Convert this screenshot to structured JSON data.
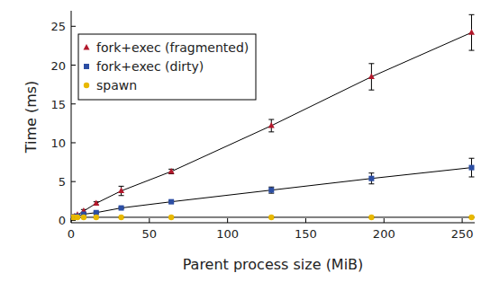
{
  "chart_data": {
    "type": "line",
    "x_label": "Parent process size (MiB)",
    "y_label": "Time (ms)",
    "x": [
      1,
      2,
      4,
      8,
      16,
      32,
      64,
      128,
      192,
      256
    ],
    "series": [
      {
        "name": "fork+exec (fragmented)",
        "color": "#b2182b",
        "marker": "triangle",
        "values": [
          0.4,
          0.5,
          0.7,
          1.2,
          2.2,
          3.8,
          6.3,
          12.2,
          18.5,
          24.2
        ],
        "errors": [
          0.05,
          0.05,
          0.1,
          0.2,
          0.2,
          0.6,
          0.3,
          0.8,
          1.7,
          2.3
        ]
      },
      {
        "name": "fork+exec (dirty)",
        "color": "#2c4ea3",
        "marker": "square",
        "values": [
          0.4,
          0.45,
          0.55,
          0.8,
          1.0,
          1.6,
          2.4,
          3.9,
          5.4,
          6.8
        ],
        "errors": [
          0.05,
          0.05,
          0.05,
          0.1,
          0.1,
          0.1,
          0.15,
          0.4,
          0.7,
          1.2
        ]
      },
      {
        "name": "spawn",
        "color": "#e8b800",
        "marker": "circle",
        "values": [
          0.4,
          0.4,
          0.4,
          0.4,
          0.4,
          0.4,
          0.4,
          0.4,
          0.4,
          0.4
        ],
        "errors": [
          0.05,
          0.05,
          0.05,
          0.05,
          0.05,
          0.05,
          0.05,
          0.05,
          0.05,
          0.05
        ]
      }
    ],
    "xlim": [
      0,
      258
    ],
    "xticks": [
      0,
      50,
      100,
      150,
      200,
      250
    ],
    "ylim": [
      -0.3,
      27
    ],
    "yticks": [
      0,
      5,
      10,
      15,
      20,
      25
    ],
    "grid": false,
    "legend": "upper left"
  }
}
